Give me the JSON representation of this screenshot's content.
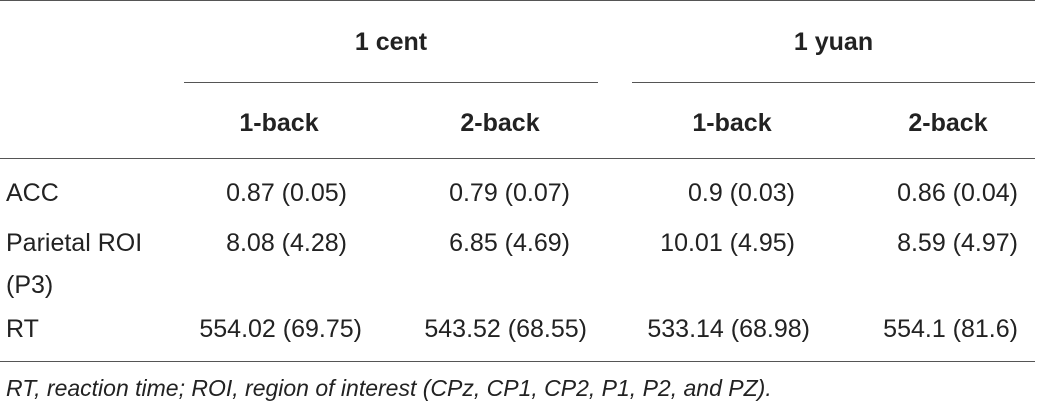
{
  "table": {
    "groups": [
      "1 cent",
      "1 yuan"
    ],
    "subheaders": [
      "1-back",
      "2-back",
      "1-back",
      "2-back"
    ],
    "rows": [
      {
        "label": [
          "ACC"
        ],
        "values": [
          "0.87 (0.05)",
          "0.79 (0.07)",
          "0.9 (0.03)",
          "0.86 (0.04)"
        ]
      },
      {
        "label": [
          "Parietal ROI",
          "(P3)"
        ],
        "values": [
          "8.08 (4.28)",
          "6.85 (4.69)",
          "10.01 (4.95)",
          "8.59 (4.97)"
        ]
      },
      {
        "label": [
          "RT"
        ],
        "values": [
          "554.02 (69.75)",
          "543.52 (68.55)",
          "533.14 (68.98)",
          "554.1 (81.6)"
        ]
      }
    ],
    "footnote": "RT, reaction time; ROI, region of interest (CPz, CP1, CP2, P1, P2, and PZ)."
  }
}
